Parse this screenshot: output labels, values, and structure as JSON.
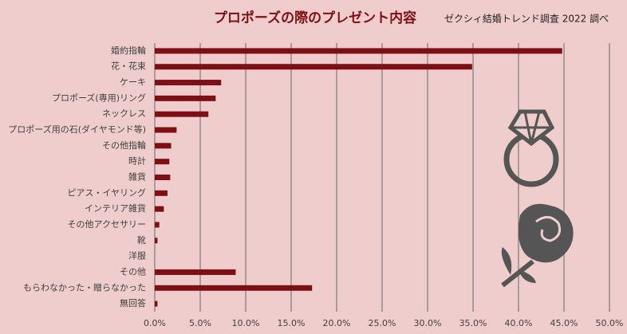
{
  "chart_data": {
    "type": "barh",
    "title": "プロポーズの際のプレゼント内容",
    "subtitle": "ゼクシィ結婚トレンド調査 2022 調べ",
    "categories": [
      "婚約指輪",
      "花・花束",
      "ケーキ",
      "プロポーズ(専用)リング",
      "ネックレス",
      "プロポーズ用の石(ダイヤモンド等)",
      "その他指輪",
      "時計",
      "雑貨",
      "ピアス・イヤリング",
      "インテリア雑貨",
      "その他アクセサリー",
      "靴",
      "洋服",
      "その他",
      "もらわなかった・贈らなかった",
      "無回答"
    ],
    "values": [
      44.8,
      34.9,
      7.3,
      6.7,
      5.9,
      2.4,
      1.8,
      1.6,
      1.7,
      1.4,
      1.0,
      0.5,
      0.3,
      0,
      8.9,
      17.3,
      0.3
    ],
    "color": "#7f0f14",
    "xlim": [
      0,
      50
    ],
    "xticks": [
      {
        "value": 0,
        "label": "0.0%"
      },
      {
        "value": 5,
        "label": "5.0%"
      },
      {
        "value": 10,
        "label": "10.0%"
      },
      {
        "value": 15,
        "label": "15.0%"
      },
      {
        "value": 20,
        "label": "20.0%"
      },
      {
        "value": 25,
        "label": "25.0%"
      },
      {
        "value": 30,
        "label": "30.0%"
      },
      {
        "value": 35,
        "label": "35.0%"
      },
      {
        "value": 40,
        "label": "40.0%"
      },
      {
        "value": 45,
        "label": "45.0%"
      },
      {
        "value": 50,
        "label": "50.0%"
      }
    ],
    "grid": true
  }
}
